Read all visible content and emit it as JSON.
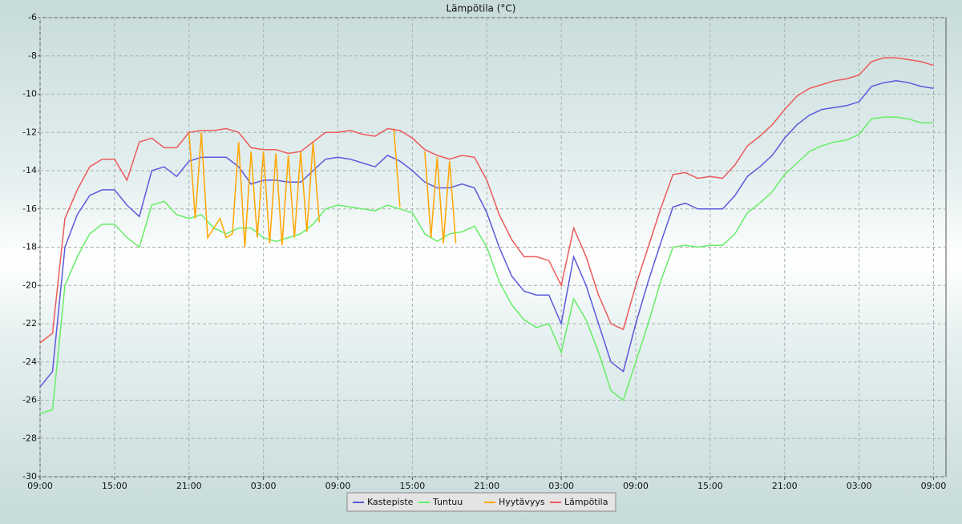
{
  "chart_data": {
    "type": "line",
    "title": "Lämpötila (°C)",
    "x": [
      0,
      1,
      2,
      3,
      4,
      5,
      6,
      7,
      8,
      9,
      10,
      11,
      12,
      13,
      14,
      15,
      16,
      17,
      18,
      19,
      20,
      21,
      22,
      23,
      24,
      25,
      26,
      27,
      28,
      29,
      30,
      31,
      32,
      33,
      34,
      35,
      36,
      37,
      38,
      39,
      40,
      41,
      42,
      43,
      44,
      45,
      46,
      47,
      48,
      49,
      50,
      51,
      52,
      53,
      54,
      55,
      56,
      57,
      58,
      59,
      60,
      61,
      62,
      63,
      64,
      65,
      66,
      67,
      68,
      69,
      70,
      71,
      72
    ],
    "series": [
      {
        "name": "Kastepiste",
        "color": "#5a5adc",
        "values": [
          -25.3,
          -24.5,
          -18,
          -16.3,
          -15.3,
          -15.0,
          -15.0,
          -15.8,
          -16.4,
          -14.0,
          -13.8,
          -14.3,
          -13.5,
          -13.3,
          -13.3,
          -13.3,
          -13.8,
          -14.7,
          -14.5,
          -14.5,
          -14.6,
          -14.6,
          -14.0,
          -13.4,
          -13.3,
          -13.4,
          -13.6,
          -13.8,
          -13.2,
          -13.5,
          -14.0,
          -14.6,
          -14.9,
          -14.9,
          -14.7,
          -14.9,
          -16.2,
          -18.0,
          -19.5,
          -20.3,
          -20.5,
          -20.5,
          -22.0,
          -18.5,
          -20.0,
          -22.0,
          -24.0,
          -24.5,
          -22.0,
          -19.8,
          -17.8,
          -15.9,
          -15.7,
          -16.0,
          -16.0,
          -16.0,
          -15.3,
          -14.3,
          -13.8,
          -13.2,
          -12.3,
          -11.6,
          -11.1,
          -10.8,
          -10.7,
          -10.6,
          -10.4,
          -9.6,
          -9.4,
          -9.3,
          -9.4,
          -9.6,
          -9.7
        ]
      },
      {
        "name": "Tuntuu",
        "color": "#66ee66",
        "values": [
          -26.7,
          -26.5,
          -20,
          -18.5,
          -17.3,
          -16.8,
          -16.8,
          -17.5,
          -18.0,
          -15.8,
          -15.6,
          -16.3,
          -16.5,
          -16.3,
          -17.0,
          -17.3,
          -17.0,
          -17.0,
          -17.5,
          -17.7,
          -17.5,
          -17.3,
          -16.8,
          -16.0,
          -15.8,
          -15.9,
          -16.0,
          -16.1,
          -15.8,
          -16.0,
          -16.2,
          -17.3,
          -17.7,
          -17.3,
          -17.2,
          -16.9,
          -18.0,
          -19.8,
          -21.0,
          -21.8,
          -22.2,
          -22.0,
          -23.5,
          -20.7,
          -21.8,
          -23.5,
          -25.5,
          -26.0,
          -24.0,
          -22.0,
          -19.8,
          -18.0,
          -17.9,
          -18.0,
          -17.9,
          -17.9,
          -17.3,
          -16.2,
          -15.7,
          -15.1,
          -14.2,
          -13.6,
          -13.0,
          -12.7,
          -12.5,
          -12.4,
          -12.1,
          -11.3,
          -11.2,
          -11.2,
          -11.3,
          -11.5,
          -11.5
        ]
      },
      {
        "name": "Hyytävyys",
        "color": "#ffa500",
        "x": [
          12,
          12.5,
          13,
          13.5,
          14,
          14.5,
          15,
          15.5,
          16,
          16.5,
          17,
          17.5,
          18,
          18.5,
          19,
          19.5,
          20,
          20.5,
          21,
          21.5,
          22,
          22.5,
          25,
          28.5,
          29,
          30,
          31,
          31.5,
          32,
          32.5,
          33,
          33.5
        ],
        "values": [
          -12.0,
          -16.5,
          -12.0,
          -17.5,
          -17.0,
          -16.5,
          -17.5,
          -17.3,
          -12.5,
          -18.0,
          -13.0,
          -17.5,
          -13.0,
          -17.8,
          -13.1,
          -17.9,
          -13.2,
          -17.5,
          -13.0,
          -17.2,
          -12.5,
          -16.7,
          null,
          -11.8,
          -15.9,
          null,
          -13.0,
          -17.5,
          -13.3,
          -17.8,
          -13.5,
          -17.8
        ]
      },
      {
        "name": "Lämpötila",
        "color": "#ec5a5a",
        "values": [
          -23.0,
          -22.5,
          -16.5,
          -15.0,
          -13.8,
          -13.4,
          -13.4,
          -14.5,
          -12.5,
          -12.3,
          -12.8,
          -12.8,
          -12.0,
          -11.9,
          -11.9,
          -11.8,
          -12.0,
          -12.8,
          -12.9,
          -12.9,
          -13.1,
          -13.0,
          -12.5,
          -12.0,
          -12.0,
          -11.9,
          -12.1,
          -12.2,
          -11.8,
          -11.9,
          -12.3,
          -12.9,
          -13.2,
          -13.4,
          -13.2,
          -13.3,
          -14.5,
          -16.3,
          -17.6,
          -18.5,
          -18.5,
          -18.7,
          -20.0,
          -17.0,
          -18.5,
          -20.5,
          -22.0,
          -22.3,
          -20.0,
          -18.0,
          -16.0,
          -14.2,
          -14.1,
          -14.4,
          -14.3,
          -14.4,
          -13.7,
          -12.7,
          -12.2,
          -11.6,
          -10.8,
          -10.1,
          -9.7,
          -9.5,
          -9.3,
          -9.2,
          -9.0,
          -8.3,
          -8.1,
          -8.1,
          -8.2,
          -8.3,
          -8.5
        ]
      }
    ],
    "xlim": [
      0,
      73
    ],
    "xticks": [
      {
        "value": 0,
        "label": "09:00"
      },
      {
        "value": 6,
        "label": "15:00"
      },
      {
        "value": 12,
        "label": "21:00"
      },
      {
        "value": 18,
        "label": "03:00"
      },
      {
        "value": 24,
        "label": "09:00"
      },
      {
        "value": 30,
        "label": "15:00"
      },
      {
        "value": 36,
        "label": "21:00"
      },
      {
        "value": 42,
        "label": "03:00"
      },
      {
        "value": 48,
        "label": "09:00"
      },
      {
        "value": 54,
        "label": "15:00"
      },
      {
        "value": 60,
        "label": "21:00"
      },
      {
        "value": 66,
        "label": "03:00"
      },
      {
        "value": 72,
        "label": "09:00"
      }
    ],
    "ylim": [
      -30,
      -6
    ],
    "yticks": [
      -30,
      -28,
      -26,
      -24,
      -22,
      -20,
      -18,
      -16,
      -14,
      -12,
      -10,
      -8,
      -6
    ],
    "grid": true,
    "legend": "bottom"
  }
}
